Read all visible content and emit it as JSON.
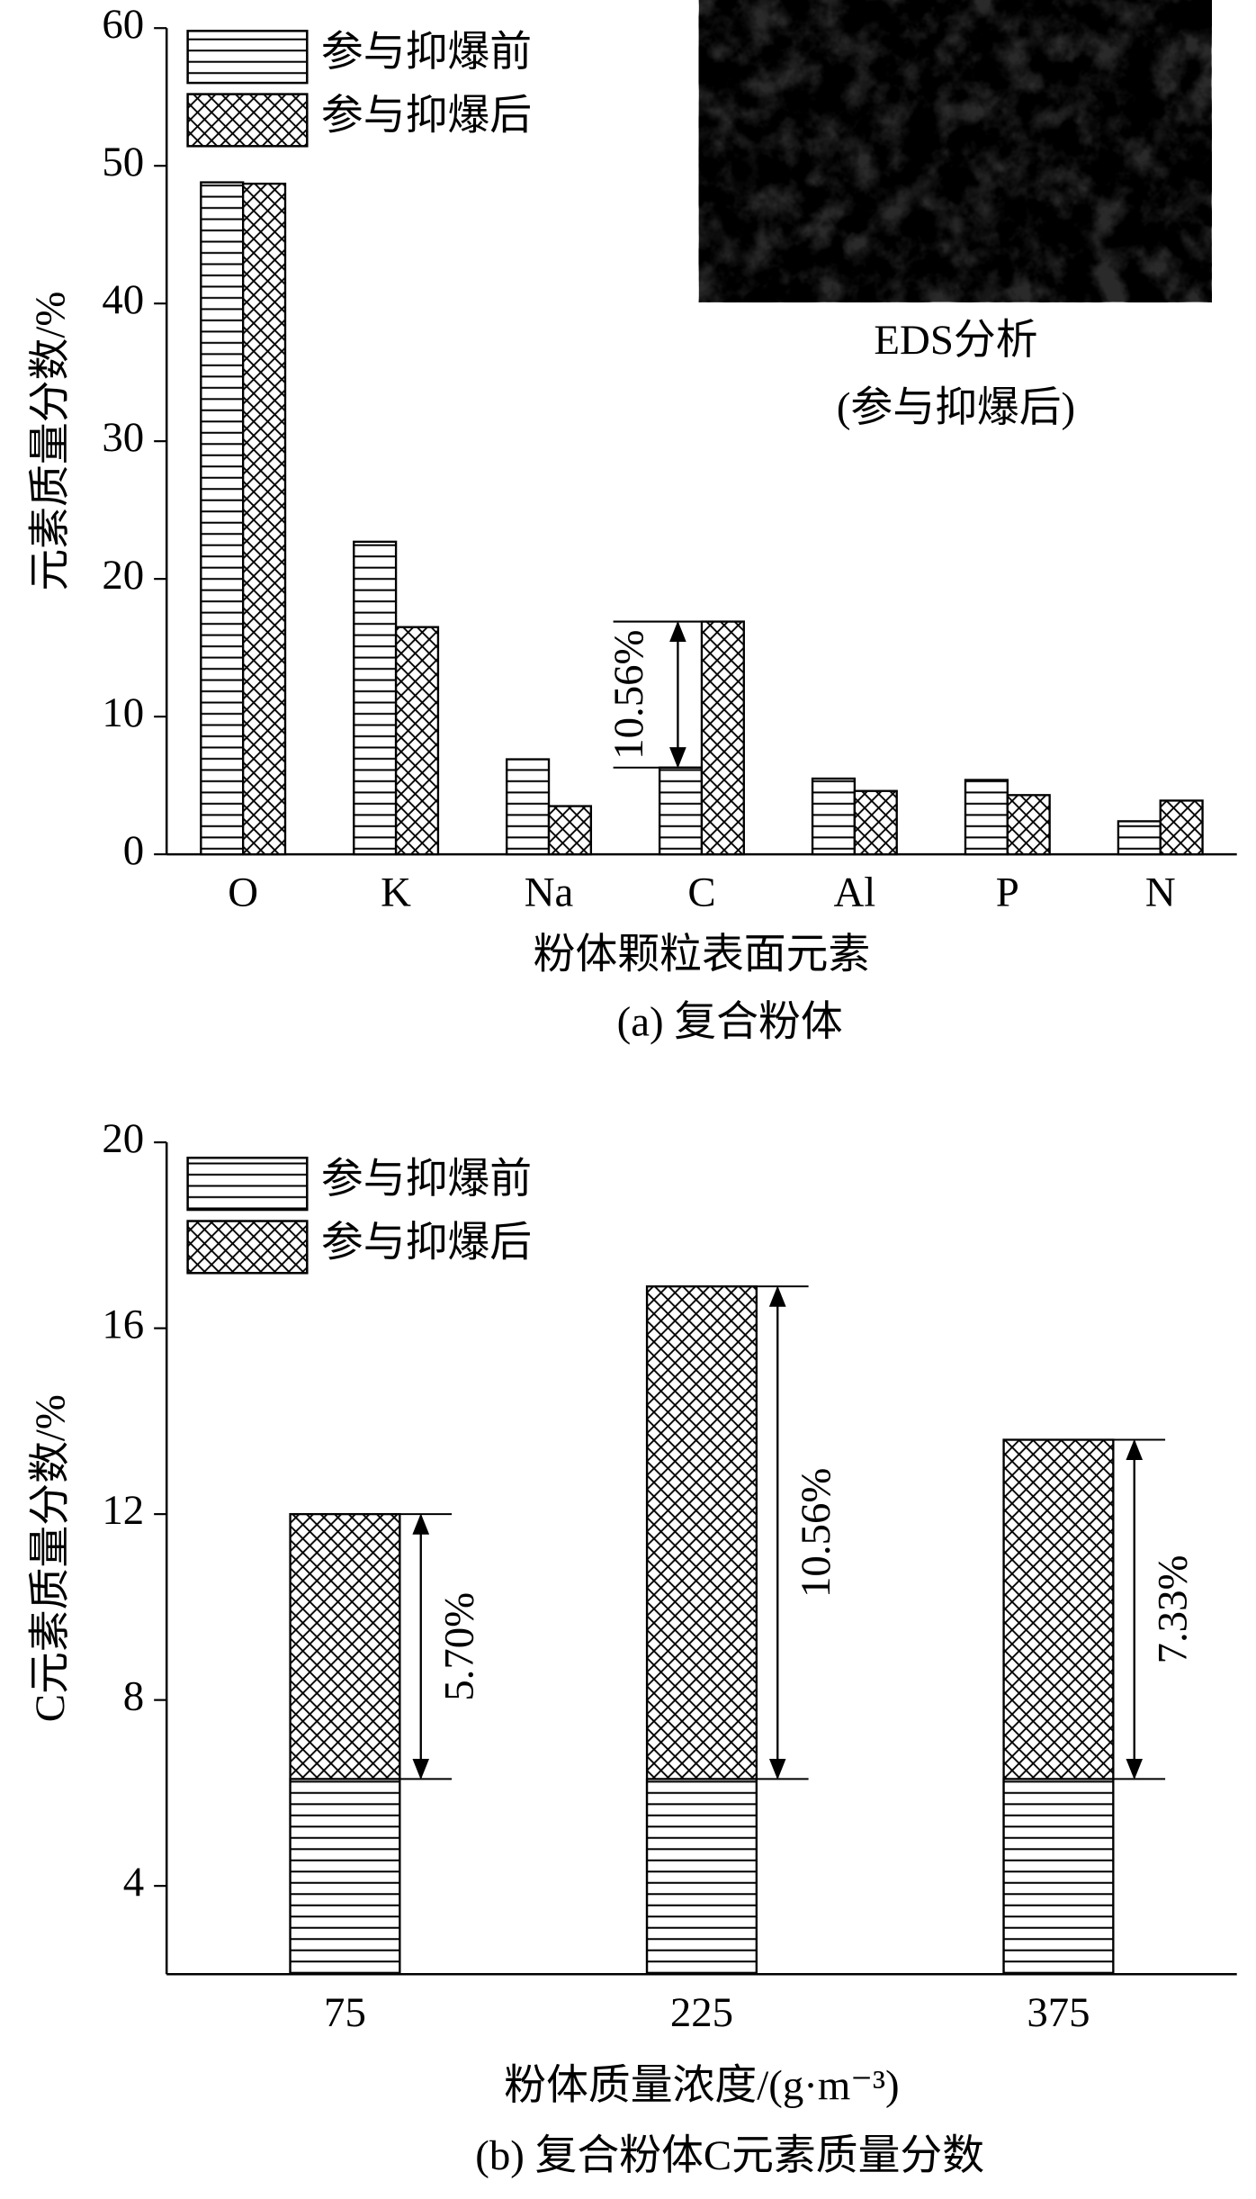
{
  "chart_data": [
    {
      "type": "bar",
      "y_label": "元素质量分数/%",
      "x_label": "粉体颗粒表面元素",
      "caption": "(a) 复合粉体",
      "inset_caption": [
        "EDS分析",
        "(参与抑爆后)"
      ],
      "categories": [
        "O",
        "K",
        "Na",
        "C",
        "Al",
        "P",
        "N"
      ],
      "series": [
        {
          "name": "参与抑爆前",
          "color": "#000000",
          "hatch": "horizontal",
          "values": [
            48.8,
            22.7,
            6.9,
            6.3,
            5.5,
            5.4,
            2.4
          ]
        },
        {
          "name": "参与抑爆后",
          "color": "#000000",
          "hatch": "cross",
          "values": [
            48.7,
            16.5,
            3.5,
            16.9,
            4.6,
            4.3,
            3.9
          ]
        }
      ],
      "annotations": [
        null,
        null,
        null,
        "10.56%",
        null,
        null,
        null
      ],
      "ylim": [
        0,
        60
      ],
      "yticks": [
        0,
        10,
        20,
        30,
        40,
        50,
        60
      ]
    },
    {
      "type": "bar",
      "y_label": "C元素质量分数/%",
      "x_label": "粉体质量浓度/(g·m⁻³)",
      "caption": "(b) 复合粉体C元素质量分数",
      "categories": [
        "75",
        "225",
        "375"
      ],
      "series": [
        {
          "name": "参与抑爆前",
          "color": "#000000",
          "hatch": "horizontal",
          "values": [
            6.3,
            6.3,
            6.3
          ]
        },
        {
          "name": "参与抑爆后",
          "color": "#000000",
          "hatch": "cross",
          "values": [
            12.0,
            16.9,
            13.6
          ]
        }
      ],
      "annotations": [
        "5.70%",
        "10.56%",
        "7.33%"
      ],
      "ylim": [
        2.1,
        20
      ],
      "yticks": [
        4,
        8,
        12,
        16,
        20
      ]
    }
  ]
}
